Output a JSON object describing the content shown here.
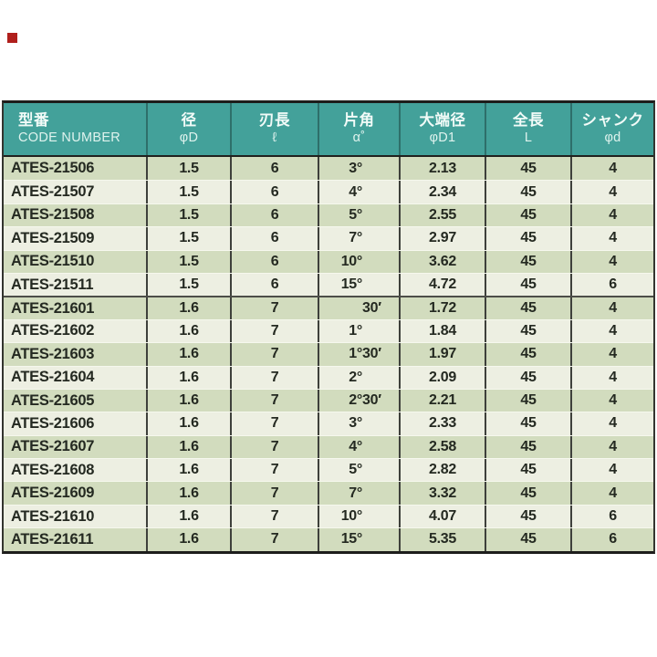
{
  "page": {
    "background": "#ffffff",
    "bullet_color": "#b01f1c"
  },
  "table": {
    "colors": {
      "header_bg": "#43a19a",
      "header_text": "#f2fbf8",
      "header_subtext": "#dff3ee",
      "row_dark": "#d2dcbe",
      "row_light": "#edefe2",
      "outer_border": "#1d1d1b",
      "column_divider": "#3e403b",
      "row_divider": "#f6f8ee",
      "group_divider": "#4c4d48",
      "cell_text": "#242921"
    },
    "columns": [
      {
        "id": "code",
        "jp": "型番",
        "sub": "CODE NUMBER"
      },
      {
        "id": "d",
        "jp": "径",
        "sub": "φD"
      },
      {
        "id": "flute",
        "jp": "刃長",
        "sub": "ℓ"
      },
      {
        "id": "angle",
        "jp": "片角",
        "sub": "α˚"
      },
      {
        "id": "d1",
        "jp": "大端径",
        "sub": "φD1"
      },
      {
        "id": "len",
        "jp": "全長",
        "sub": "L"
      },
      {
        "id": "shank",
        "jp": "シャンク",
        "sub": "φd"
      }
    ],
    "group_break_before_row": 6,
    "rows": [
      {
        "code": "ATES-21506",
        "d": "1.5",
        "flute": "6",
        "angle": "3°",
        "d1": "2.13",
        "len": "45",
        "shank": "4"
      },
      {
        "code": "ATES-21507",
        "d": "1.5",
        "flute": "6",
        "angle": "4°",
        "d1": "2.34",
        "len": "45",
        "shank": "4"
      },
      {
        "code": "ATES-21508",
        "d": "1.5",
        "flute": "6",
        "angle": "5°",
        "d1": "2.55",
        "len": "45",
        "shank": "4"
      },
      {
        "code": "ATES-21509",
        "d": "1.5",
        "flute": "6",
        "angle": "7°",
        "d1": "2.97",
        "len": "45",
        "shank": "4"
      },
      {
        "code": "ATES-21510",
        "d": "1.5",
        "flute": "6",
        "angle": "10°",
        "d1": "3.62",
        "len": "45",
        "shank": "4"
      },
      {
        "code": "ATES-21511",
        "d": "1.5",
        "flute": "6",
        "angle": "15°",
        "d1": "4.72",
        "len": "45",
        "shank": "6"
      },
      {
        "code": "ATES-21601",
        "d": "1.6",
        "flute": "7",
        "angle": "30′",
        "d1": "1.72",
        "len": "45",
        "shank": "4"
      },
      {
        "code": "ATES-21602",
        "d": "1.6",
        "flute": "7",
        "angle": "1°",
        "d1": "1.84",
        "len": "45",
        "shank": "4"
      },
      {
        "code": "ATES-21603",
        "d": "1.6",
        "flute": "7",
        "angle": "1°30′",
        "d1": "1.97",
        "len": "45",
        "shank": "4"
      },
      {
        "code": "ATES-21604",
        "d": "1.6",
        "flute": "7",
        "angle": "2°",
        "d1": "2.09",
        "len": "45",
        "shank": "4"
      },
      {
        "code": "ATES-21605",
        "d": "1.6",
        "flute": "7",
        "angle": "2°30′",
        "d1": "2.21",
        "len": "45",
        "shank": "4"
      },
      {
        "code": "ATES-21606",
        "d": "1.6",
        "flute": "7",
        "angle": "3°",
        "d1": "2.33",
        "len": "45",
        "shank": "4"
      },
      {
        "code": "ATES-21607",
        "d": "1.6",
        "flute": "7",
        "angle": "4°",
        "d1": "2.58",
        "len": "45",
        "shank": "4"
      },
      {
        "code": "ATES-21608",
        "d": "1.6",
        "flute": "7",
        "angle": "5°",
        "d1": "2.82",
        "len": "45",
        "shank": "4"
      },
      {
        "code": "ATES-21609",
        "d": "1.6",
        "flute": "7",
        "angle": "7°",
        "d1": "3.32",
        "len": "45",
        "shank": "4"
      },
      {
        "code": "ATES-21610",
        "d": "1.6",
        "flute": "7",
        "angle": "10°",
        "d1": "4.07",
        "len": "45",
        "shank": "6"
      },
      {
        "code": "ATES-21611",
        "d": "1.6",
        "flute": "7",
        "angle": "15°",
        "d1": "5.35",
        "len": "45",
        "shank": "6"
      }
    ]
  }
}
